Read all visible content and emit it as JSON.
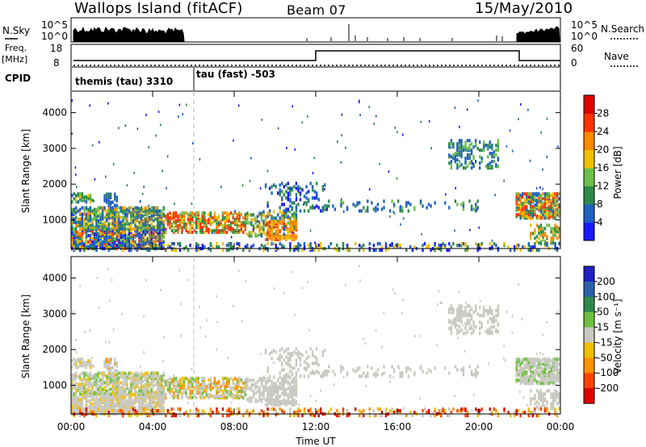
{
  "header": {
    "station": "Wallops Island (fitACF)",
    "beam": "Beam 07",
    "date": "15/May/2010"
  },
  "noise_panel": {
    "left_label": "N.Sky",
    "left_ticks": [
      "10^5",
      "10^0"
    ],
    "right_ticks": [
      "10^5",
      "10^0"
    ],
    "right_label": "N.Search"
  },
  "freq_panel": {
    "left_label_line1": "Freq.",
    "left_label_line2": "[MHz]",
    "left_ticks": [
      "18",
      "8"
    ],
    "right_ticks": [
      "60",
      "0"
    ],
    "right_label": "Nave"
  },
  "cpid_panel": {
    "label": "CPID",
    "segments": [
      "themis (tau) 3310",
      "tau (fast) -503"
    ]
  },
  "colors": {
    "power": [
      "#1a1aff",
      "#2060c0",
      "#2e8a4a",
      "#6cc04a",
      "#f0c000",
      "#ff8800",
      "#ff3300",
      "#e00000"
    ],
    "velocity": [
      "#2020c0",
      "#2e60a8",
      "#2e8a4a",
      "#70c040",
      "#c8c8c0",
      "#f0c000",
      "#ff9000",
      "#ff4400",
      "#e00000"
    ]
  },
  "chart_data": [
    {
      "type": "heatmap",
      "quantity": "power",
      "xlabel": "",
      "ylabel": "Slant Range [km]",
      "ylim": [
        200,
        4600
      ],
      "yticks": [
        "1000",
        "2000",
        "3000",
        "4000"
      ],
      "xticks": [
        "00:00",
        "04:00",
        "08:00",
        "12:00",
        "16:00",
        "20:00",
        "00:00"
      ],
      "colorbar_label": "Power [dB]",
      "colorbar_ticks": [
        "4",
        "8",
        "12",
        "16",
        "20",
        "24",
        "28"
      ]
    },
    {
      "type": "heatmap",
      "quantity": "velocity",
      "xlabel": "Time UT",
      "ylabel": "Slant Range [km]",
      "ylim": [
        200,
        4600
      ],
      "yticks": [
        "1000",
        "2000",
        "3000",
        "4000"
      ],
      "xticks": [
        "00:00",
        "04:00",
        "08:00",
        "12:00",
        "16:00",
        "20:00",
        "00:00"
      ],
      "colorbar_label": "Velocity [m s⁻¹]",
      "colorbar_ticks": [
        "200",
        "100",
        "50",
        "15",
        "-15",
        "-50",
        "-100",
        "-200"
      ]
    }
  ]
}
